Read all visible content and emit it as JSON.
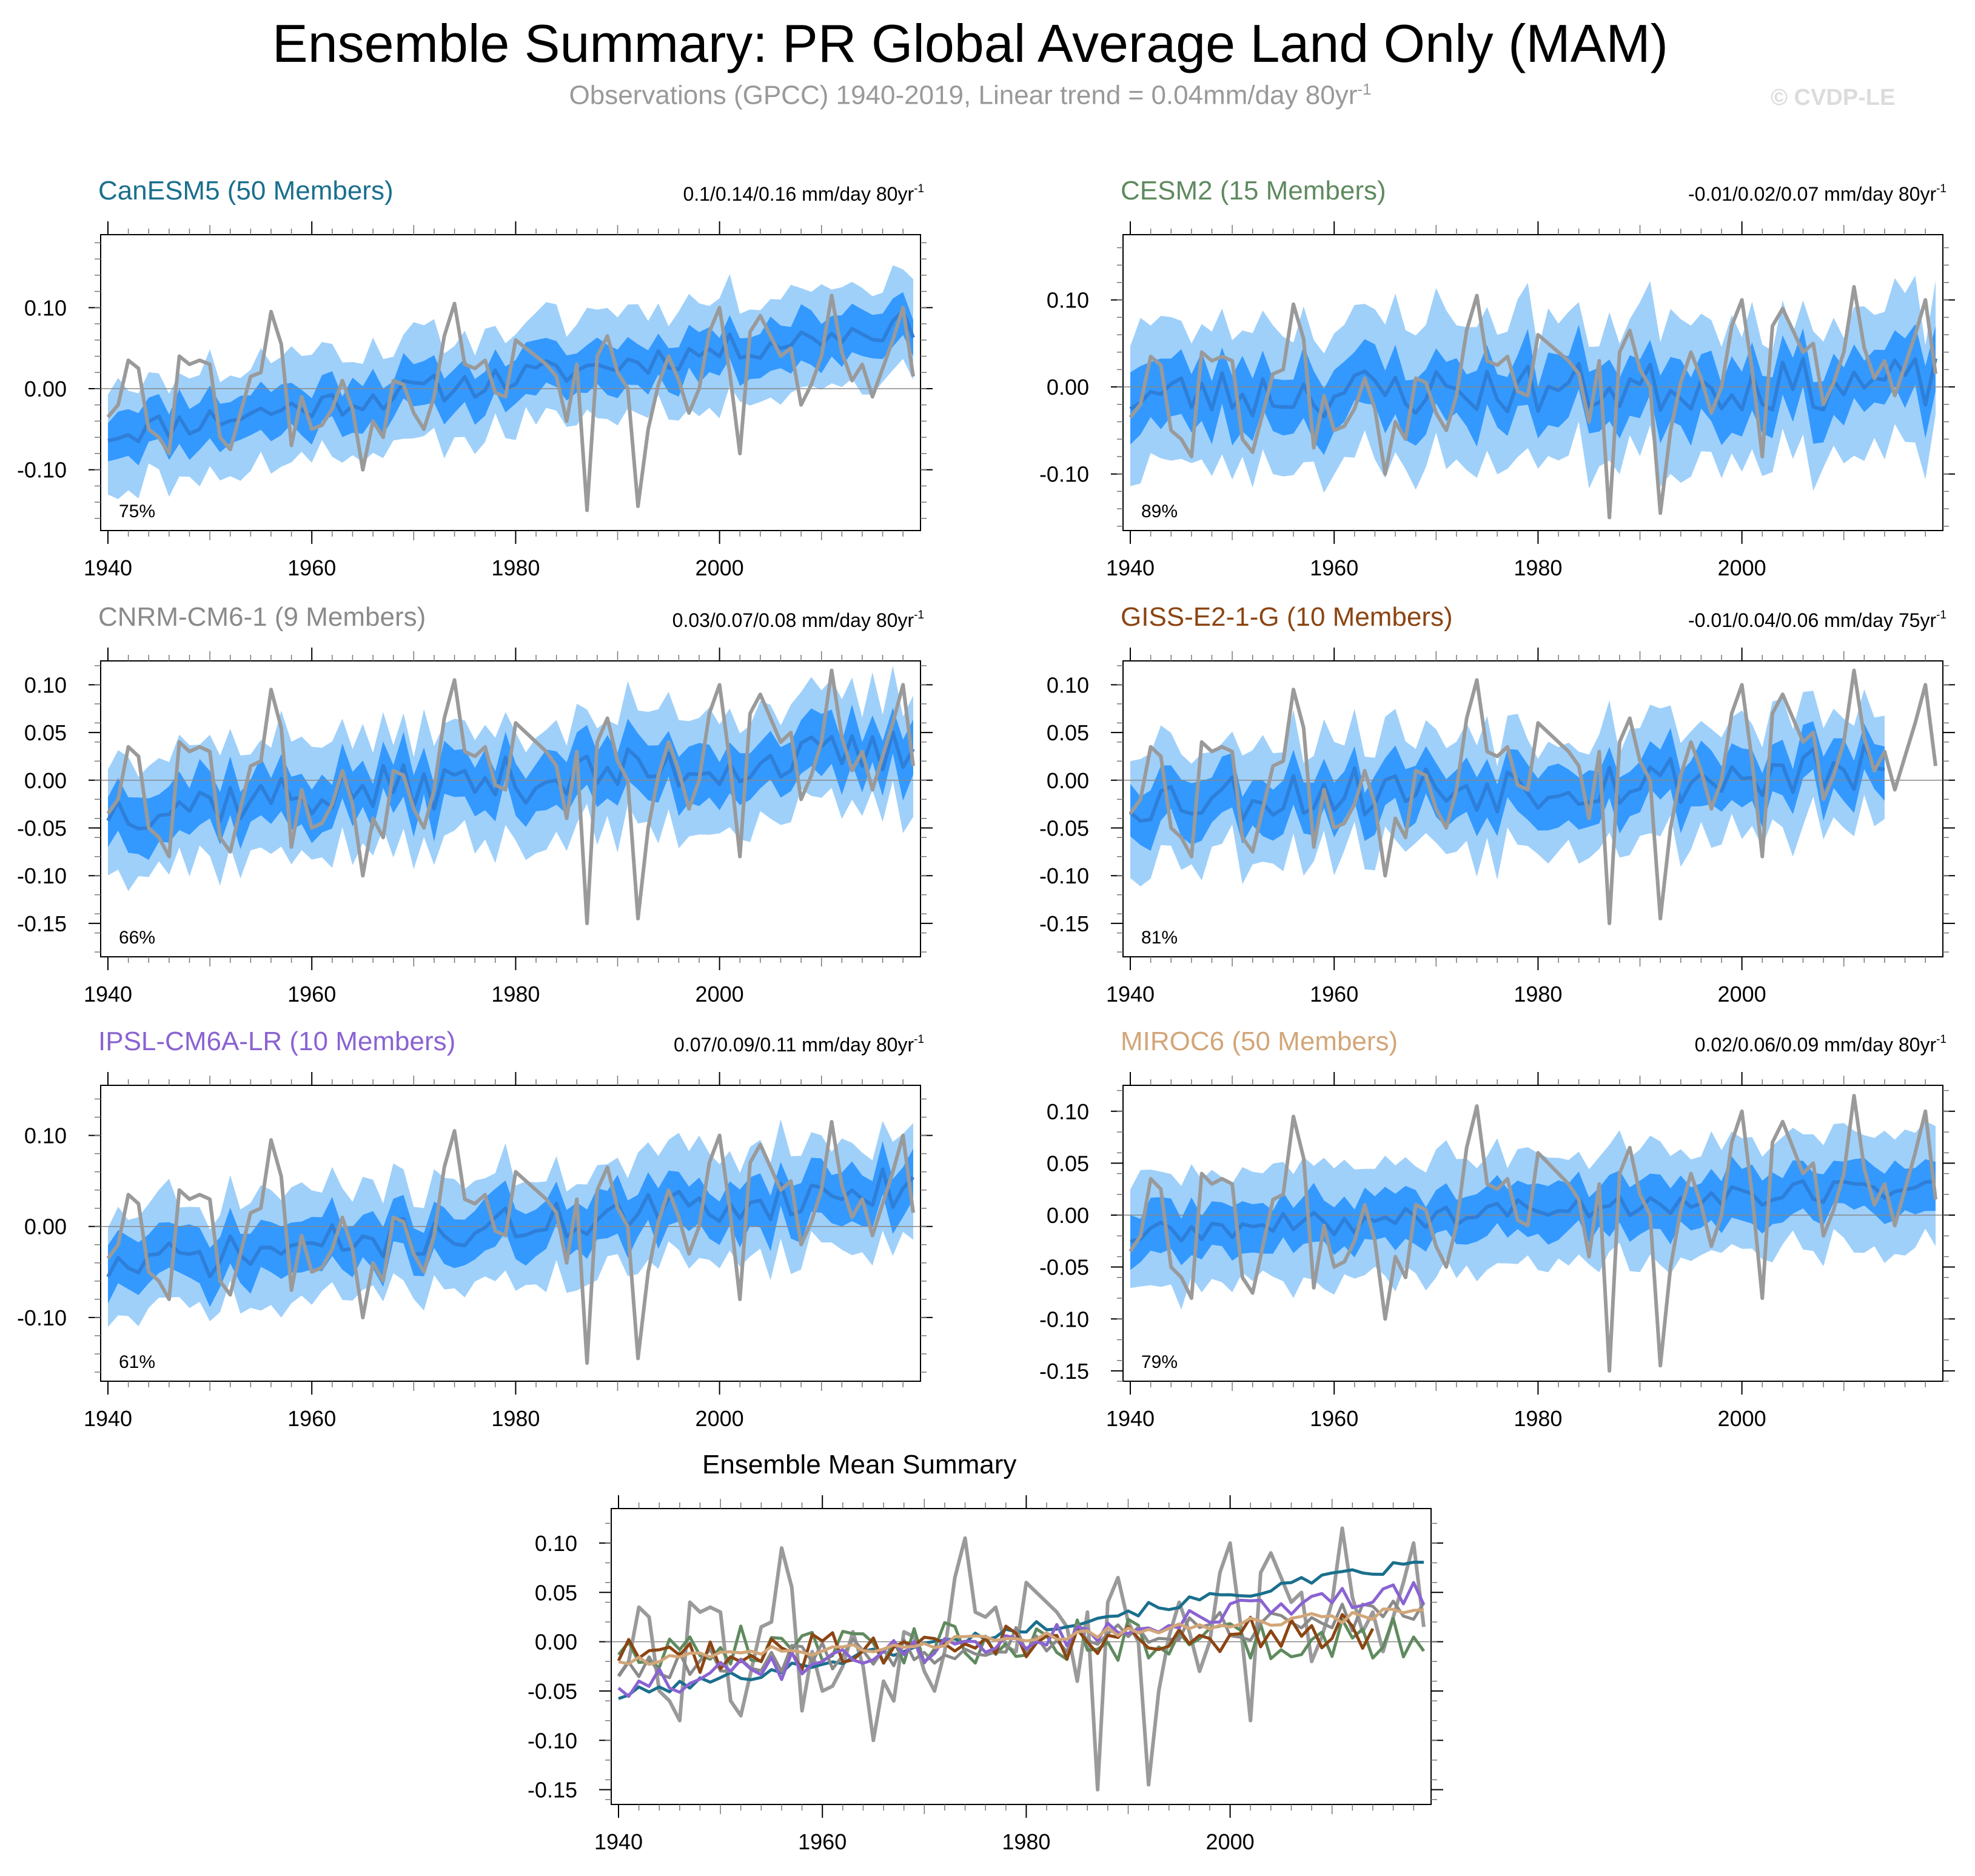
{
  "title": "Ensemble Summary: PR Global Average Land Only (MAM)",
  "subtitle": "Observations (GPCC) 1940-2019, Linear trend = 0.04mm/day 80yr",
  "subtitle_sup": "-1",
  "watermark": "© CVDP-LE",
  "colors": {
    "obs": "#9a9a9a",
    "band_outer": "#9fd0fa",
    "band_inner": "#3399ff",
    "ens_mean": "#2e7fd9",
    "zero_line": "#888888"
  },
  "chart_data": [
    {
      "id": "canesm5",
      "type": "line",
      "title": "CanESM5 (50 Members)",
      "title_color": "#1a6f8d",
      "range_label": "0.1/0.14/0.16 mm/day 80yr",
      "range_sup": "-1",
      "percent_label": "75%",
      "x_start": 1940,
      "x_end": 2019,
      "xticks": [
        1940,
        1960,
        1980,
        2000
      ],
      "ylim": [
        -0.175,
        0.19
      ],
      "yticks": [
        -0.1,
        0.0,
        0.1
      ],
      "ytick_labels": [
        "-0.10",
        "0.00",
        "0.10"
      ],
      "mean": {
        "start": -0.055,
        "end": 0.08
      },
      "inner_half": 0.035,
      "outer_half": 0.075,
      "noise": 0.018,
      "seed": 11
    },
    {
      "id": "cesm2",
      "type": "line",
      "title": "CESM2 (15 Members)",
      "title_color": "#5f8a5f",
      "range_label": "-0.01/0.02/0.07 mm/day 80yr",
      "range_sup": "-1",
      "percent_label": "89%",
      "x_start": 1940,
      "x_end": 2019,
      "xticks": [
        1940,
        1960,
        1980,
        2000
      ],
      "ylim": [
        -0.165,
        0.175
      ],
      "yticks": [
        -0.1,
        0.0,
        0.1
      ],
      "ytick_labels": [
        "-0.10",
        "0.00",
        "0.10"
      ],
      "mean": {
        "start": -0.01,
        "end": 0.005
      },
      "inner_half": 0.045,
      "outer_half": 0.095,
      "noise": 0.03,
      "seed": 23
    },
    {
      "id": "cnrm",
      "type": "line",
      "title": "CNRM-CM6-1 (9 Members)",
      "title_color": "#8a8a8a",
      "range_label": "0.03/0.07/0.08 mm/day 80yr",
      "range_sup": "-1",
      "percent_label": "66%",
      "x_start": 1940,
      "x_end": 2019,
      "xticks": [
        1940,
        1960,
        1980,
        2000
      ],
      "ylim": [
        -0.185,
        0.125
      ],
      "yticks": [
        -0.15,
        -0.1,
        -0.05,
        0.0,
        0.05,
        0.1
      ],
      "ytick_labels": [
        "-0.15",
        "-0.10",
        "-0.05",
        "0.00",
        "0.05",
        "0.10"
      ],
      "mean": {
        "start": -0.03,
        "end": 0.03
      },
      "inner_half": 0.035,
      "outer_half": 0.07,
      "noise": 0.025,
      "seed": 37
    },
    {
      "id": "giss",
      "type": "line",
      "title": "GISS-E2-1-G (10 Members)",
      "title_color": "#8b4513",
      "range_label": "-0.01/0.04/0.06 mm/day 75yr",
      "range_sup": "-1",
      "percent_label": "81%",
      "x_start": 1940,
      "x_end": 2014,
      "xticks": [
        1940,
        1960,
        1980,
        2000
      ],
      "ylim": [
        -0.185,
        0.125
      ],
      "yticks": [
        -0.15,
        -0.1,
        -0.05,
        0.0,
        0.05,
        0.1
      ],
      "ytick_labels": [
        "-0.15",
        "-0.10",
        "-0.05",
        "0.00",
        "0.05",
        "0.10"
      ],
      "mean": {
        "start": -0.02,
        "end": 0.01
      },
      "inner_half": 0.035,
      "outer_half": 0.07,
      "noise": 0.028,
      "seed": 53
    },
    {
      "id": "ipsl",
      "type": "line",
      "title": "IPSL-CM6A-LR (10 Members)",
      "title_color": "#8a63d2",
      "range_label": "0.07/0.09/0.11 mm/day 80yr",
      "range_sup": "-1",
      "percent_label": "61%",
      "x_start": 1940,
      "x_end": 2019,
      "xticks": [
        1940,
        1960,
        1980,
        2000
      ],
      "ylim": [
        -0.17,
        0.155
      ],
      "yticks": [
        -0.1,
        0.0,
        0.1
      ],
      "ytick_labels": [
        "-0.10",
        "0.00",
        "0.10"
      ],
      "mean": {
        "start": -0.045,
        "end": 0.045
      },
      "inner_half": 0.035,
      "outer_half": 0.07,
      "noise": 0.022,
      "seed": 71
    },
    {
      "id": "miroc6",
      "type": "line",
      "title": "MIROC6 (50 Members)",
      "title_color": "#d2a679",
      "range_label": "0.02/0.06/0.09 mm/day 80yr",
      "range_sup": "-1",
      "percent_label": "79%",
      "x_start": 1940,
      "x_end": 2019,
      "xticks": [
        1940,
        1960,
        1980,
        2000
      ],
      "ylim": [
        -0.16,
        0.125
      ],
      "yticks": [
        -0.15,
        -0.1,
        -0.05,
        0.0,
        0.05,
        0.1
      ],
      "ytick_labels": [
        "-0.15",
        "-0.10",
        "-0.05",
        "0.00",
        "0.05",
        "0.10"
      ],
      "mean": {
        "start": -0.02,
        "end": 0.03
      },
      "inner_half": 0.03,
      "outer_half": 0.065,
      "noise": 0.012,
      "seed": 89
    },
    {
      "id": "ensmean",
      "type": "line",
      "title": "Ensemble Mean Summary",
      "title_color": "#000000",
      "x_start": 1940,
      "x_end": 2019,
      "xticks": [
        1940,
        1960,
        1980,
        2000
      ],
      "ylim": [
        -0.165,
        0.135
      ],
      "yticks": [
        -0.15,
        -0.1,
        -0.05,
        0.0,
        0.05,
        0.1
      ],
      "ytick_labels": [
        "-0.15",
        "-0.10",
        "-0.05",
        "0.00",
        "0.05",
        "0.10"
      ],
      "series": [
        {
          "name": "CanESM5",
          "color": "#1a6f8d",
          "start": -0.055,
          "end": 0.08,
          "noise": 0.006,
          "seed": 101,
          "x_end": 2019
        },
        {
          "name": "CESM2",
          "color": "#5f8a5f",
          "start": -0.005,
          "end": 0.005,
          "noise": 0.022,
          "seed": 202,
          "x_end": 2019
        },
        {
          "name": "CNRM-CM6-1",
          "color": "#8a8a8a",
          "start": -0.03,
          "end": 0.03,
          "noise": 0.016,
          "seed": 303,
          "x_end": 2019
        },
        {
          "name": "GISS-E2-1-G",
          "color": "#8b4513",
          "start": -0.015,
          "end": 0.01,
          "noise": 0.02,
          "seed": 404,
          "x_end": 2014
        },
        {
          "name": "IPSL-CM6A-LR",
          "color": "#8a63d2",
          "start": -0.045,
          "end": 0.05,
          "noise": 0.014,
          "seed": 505,
          "x_end": 2019
        },
        {
          "name": "MIROC6",
          "color": "#d2a679",
          "start": -0.02,
          "end": 0.03,
          "noise": 0.006,
          "seed": 606,
          "x_end": 2019
        }
      ]
    }
  ],
  "obs_series": {
    "name": "GPCC observations",
    "x_start": 1940,
    "values": [
      -0.035,
      -0.02,
      0.035,
      0.025,
      -0.05,
      -0.06,
      -0.08,
      0.04,
      0.03,
      0.035,
      0.03,
      -0.06,
      -0.075,
      -0.03,
      0.015,
      0.02,
      0.095,
      0.055,
      -0.07,
      -0.01,
      -0.05,
      -0.045,
      -0.025,
      0.01,
      -0.025,
      -0.1,
      -0.04,
      -0.06,
      0.01,
      0.005,
      -0.03,
      -0.05,
      -0.01,
      0.065,
      0.105,
      0.03,
      0.025,
      0.035,
      -0.005,
      -0.01,
      0.06,
      0.05,
      0.04,
      0.03,
      0.015,
      -0.04,
      0.03,
      -0.15,
      0.04,
      0.065,
      0.02,
      0.0,
      -0.145,
      -0.05,
      0.005,
      0.04,
      0.01,
      -0.03,
      0.0,
      0.07,
      0.1,
      0.02,
      -0.08,
      0.07,
      0.09,
      0.065,
      0.04,
      0.05,
      -0.02,
      0.005,
      0.04,
      0.115,
      0.045,
      0.01,
      0.03,
      -0.01,
      0.025,
      0.06,
      0.1,
      0.015
    ]
  }
}
